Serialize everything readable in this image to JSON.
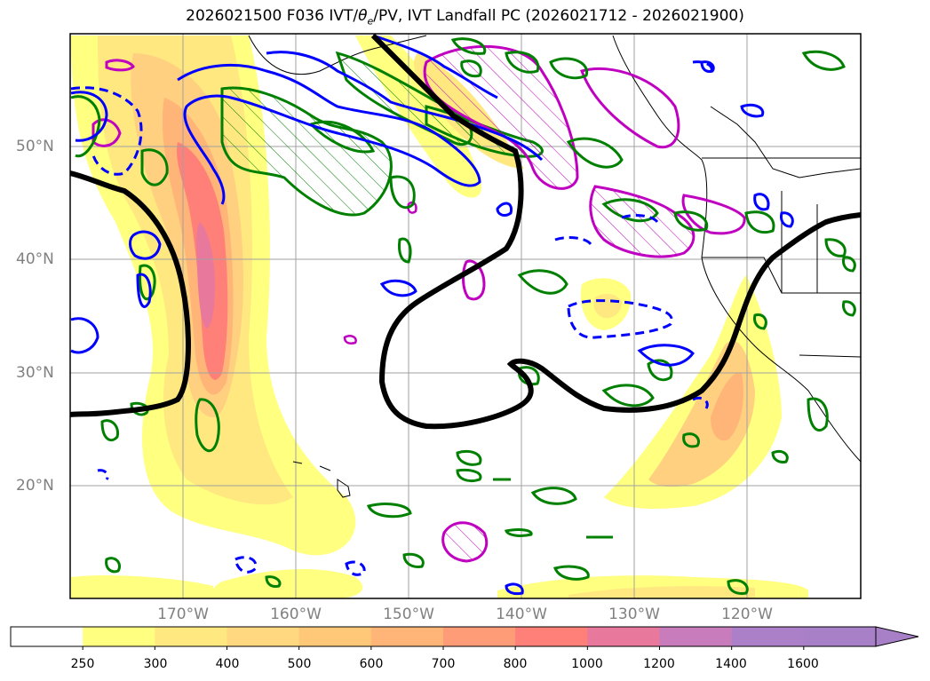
{
  "title": {
    "prefix": "2026021500 F036 IVT/",
    "theta": "θ",
    "theta_sub": "e",
    "suffix": "/PV, IVT Landfall PC (2026021712 - 2026021900)"
  },
  "latitude_labels": [
    "50°N",
    "40°N",
    "30°N",
    "20°N"
  ],
  "longitude_labels": [
    "170°W",
    "160°W",
    "150°W",
    "140°W",
    "130°W",
    "120°W"
  ],
  "colorbar": {
    "ticks": [
      "250",
      "300",
      "400",
      "500",
      "600",
      "700",
      "800",
      "1000",
      "1200",
      "1400",
      "1600"
    ],
    "colors": [
      "#ffffff",
      "#ffff80",
      "#ffe880",
      "#ffd880",
      "#ffc878",
      "#ffb478",
      "#ff9c78",
      "#ff8078",
      "#e8789c",
      "#c87cbc",
      "#ac80c8",
      "#a880c8"
    ],
    "extend": "max"
  },
  "legend_colors": {
    "ivt_fill": "#ffd080",
    "pv_contour": "#008000",
    "theta_contour": "#0000ff",
    "pc_contour": "#c000c0",
    "landfall_line": "#000000"
  }
}
